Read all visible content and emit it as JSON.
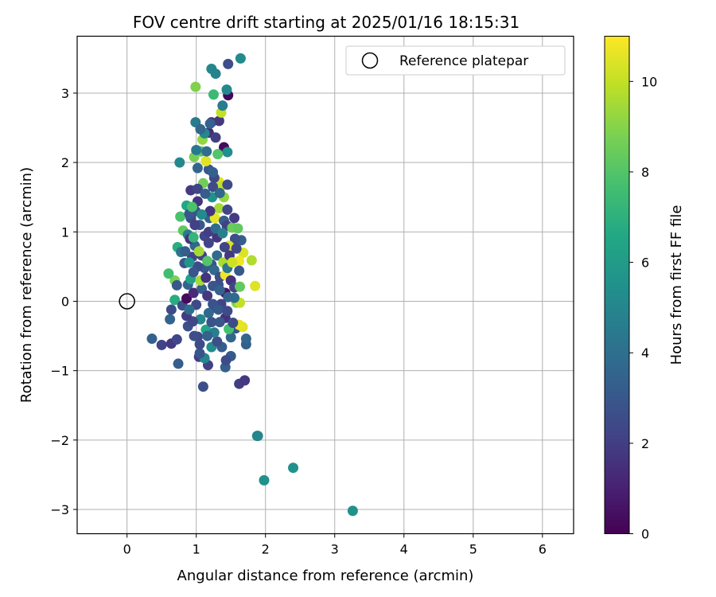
{
  "chart_data": {
    "type": "scatter",
    "title": "FOV centre drift starting at 2025/01/16 18:15:31",
    "xlabel": "Angular distance from reference (arcmin)",
    "ylabel": "Rotation from reference (arcmin)",
    "xlim": [
      -0.72,
      6.45
    ],
    "ylim": [
      -3.35,
      3.82
    ],
    "xticks": [
      0,
      1,
      2,
      3,
      4,
      5,
      6
    ],
    "yticks": [
      -3,
      -2,
      -1,
      0,
      1,
      2,
      3
    ],
    "grid": true,
    "legend": {
      "placement": "top-right",
      "entries": [
        "Reference platepar"
      ]
    },
    "reference_point": {
      "x": 0,
      "y": 0
    },
    "colorbar": {
      "label": "Hours from first FF file",
      "colormap": "viridis",
      "range": [
        0,
        11
      ],
      "ticks": [
        0,
        2,
        4,
        6,
        8,
        10
      ]
    },
    "series": [
      {
        "points": [
          [
            3.26,
            -3.02,
            5.5
          ],
          [
            2.4,
            -2.4,
            5.5
          ],
          [
            1.98,
            -2.58,
            5.5
          ],
          [
            1.89,
            -1.94,
            5.3
          ],
          [
            1.88,
            -1.94,
            5.0
          ],
          [
            1.1,
            -1.23,
            2.6
          ],
          [
            1.62,
            -1.19,
            2.0
          ],
          [
            1.7,
            -1.14,
            1.8
          ],
          [
            1.17,
            -0.92,
            2.1
          ],
          [
            1.42,
            -0.95,
            3.3
          ],
          [
            0.74,
            -0.9,
            3.2
          ],
          [
            1.04,
            -0.8,
            2.0
          ],
          [
            1.12,
            -0.82,
            5.0
          ],
          [
            1.5,
            -0.79,
            3.1
          ],
          [
            1.43,
            -0.85,
            2.5
          ],
          [
            0.5,
            -0.63,
            2.2
          ],
          [
            0.64,
            -0.61,
            1.8
          ],
          [
            0.36,
            -0.54,
            3.4
          ],
          [
            0.72,
            -0.55,
            2.3
          ],
          [
            1.22,
            -0.66,
            5.3
          ],
          [
            1.72,
            -0.62,
            3.3
          ],
          [
            1.72,
            -0.54,
            3.6
          ],
          [
            1.37,
            -0.66,
            3.2
          ],
          [
            1.05,
            -0.75,
            2.9
          ],
          [
            1.3,
            -0.58,
            2.6
          ],
          [
            0.62,
            -0.26,
            3.5
          ],
          [
            0.64,
            -0.12,
            2.5
          ],
          [
            0.88,
            -0.36,
            2.7
          ],
          [
            1.14,
            -0.41,
            6.5
          ],
          [
            1.5,
            -0.52,
            3.6
          ],
          [
            1.57,
            -0.39,
            2.9
          ],
          [
            1.67,
            -0.37,
            10.5
          ],
          [
            1.47,
            -0.4,
            7.7
          ],
          [
            1.62,
            -0.34,
            10.6
          ],
          [
            1.02,
            -0.51,
            2.4
          ],
          [
            0.69,
            0.02,
            6.8
          ],
          [
            0.69,
            0.3,
            8.8
          ],
          [
            0.6,
            0.4,
            7.6
          ],
          [
            0.72,
            0.23,
            3.0
          ],
          [
            0.88,
            0.24,
            3.5
          ],
          [
            0.92,
            0.32,
            6.3
          ],
          [
            1.32,
            0.24,
            2.7
          ],
          [
            1.42,
            0.12,
            0.6
          ],
          [
            1.58,
            -0.02,
            9.0
          ],
          [
            1.63,
            -0.02,
            10.0
          ],
          [
            1.85,
            0.22,
            10.5
          ],
          [
            1.8,
            0.59,
            9.7
          ],
          [
            1.68,
            0.7,
            10.4
          ],
          [
            1.62,
            0.58,
            10.8
          ],
          [
            1.65,
            0.88,
            3.2
          ],
          [
            1.56,
            0.9,
            2.6
          ],
          [
            1.47,
            0.8,
            10.4
          ],
          [
            1.41,
            0.78,
            2.2
          ],
          [
            1.3,
            0.92,
            1.7
          ],
          [
            1.22,
            0.53,
            2.8
          ],
          [
            1.12,
            0.48,
            3.1
          ],
          [
            1.02,
            0.5,
            2.5
          ],
          [
            0.94,
            0.64,
            2.2
          ],
          [
            0.83,
            0.55,
            2.9
          ],
          [
            0.73,
            0.78,
            6.9
          ],
          [
            0.78,
            0.71,
            4.3
          ],
          [
            0.81,
            1.02,
            8.3
          ],
          [
            0.77,
            1.22,
            7.8
          ],
          [
            0.86,
            1.38,
            6.5
          ],
          [
            0.92,
            1.6,
            1.9
          ],
          [
            0.99,
            1.3,
            2.8
          ],
          [
            1.05,
            1.1,
            3.0
          ],
          [
            1.12,
            0.94,
            2.3
          ],
          [
            1.19,
            1.2,
            3.4
          ],
          [
            1.27,
            1.2,
            10.6
          ],
          [
            1.33,
            1.34,
            9.5
          ],
          [
            1.4,
            1.16,
            3.2
          ],
          [
            1.44,
            1.09,
            2.1
          ],
          [
            1.52,
            1.06,
            8.5
          ],
          [
            1.4,
            1.5,
            9.2
          ],
          [
            1.33,
            1.72,
            10.5
          ],
          [
            1.26,
            1.78,
            2.4
          ],
          [
            1.18,
            1.9,
            3.0
          ],
          [
            1.14,
            2.02,
            10.5
          ],
          [
            1.07,
            2.16,
            8.0
          ],
          [
            0.97,
            2.08,
            8.7
          ],
          [
            0.76,
            2.0,
            5.1
          ],
          [
            1.0,
            2.18,
            4.4
          ],
          [
            1.09,
            2.33,
            9.2
          ],
          [
            1.18,
            2.43,
            1.4
          ],
          [
            1.22,
            2.58,
            1.6
          ],
          [
            1.28,
            2.36,
            2.0
          ],
          [
            1.33,
            2.6,
            1.8
          ],
          [
            1.36,
            2.72,
            10.0
          ],
          [
            1.4,
            2.22,
            0.3
          ],
          [
            1.45,
            2.15,
            5.3
          ],
          [
            1.46,
            2.97,
            0.2
          ],
          [
            1.44,
            3.05,
            5.1
          ],
          [
            1.38,
            2.82,
            4.6
          ],
          [
            1.25,
            2.98,
            7.4
          ],
          [
            0.99,
            3.09,
            8.9
          ],
          [
            0.99,
            2.58,
            4.5
          ],
          [
            1.22,
            3.35,
            5.0
          ],
          [
            1.28,
            3.28,
            4.9
          ],
          [
            1.46,
            3.42,
            2.6
          ],
          [
            1.64,
            3.5,
            5.2
          ],
          [
            1.12,
            2.42,
            5.1
          ],
          [
            1.23,
            1.5,
            5.5
          ],
          [
            1.36,
            1.66,
            10.0
          ],
          [
            1.45,
            1.32,
            2.3
          ],
          [
            1.55,
            1.2,
            1.9
          ],
          [
            1.6,
            1.05,
            8.3
          ],
          [
            1.1,
            1.7,
            8.6
          ],
          [
            1.02,
            1.44,
            1.7
          ],
          [
            0.92,
            1.2,
            2.5
          ],
          [
            0.88,
            0.96,
            4.5
          ],
          [
            0.98,
            0.8,
            3.6
          ],
          [
            1.08,
            0.66,
            2.2
          ],
          [
            1.16,
            0.58,
            8.0
          ],
          [
            1.26,
            0.45,
            3.7
          ],
          [
            1.34,
            0.35,
            2.6
          ],
          [
            1.42,
            0.38,
            10.8
          ],
          [
            1.5,
            0.3,
            1.6
          ],
          [
            1.55,
            0.2,
            2.2
          ],
          [
            1.46,
            0.06,
            3.5
          ],
          [
            1.36,
            -0.04,
            2.2
          ],
          [
            1.26,
            -0.09,
            1.5
          ],
          [
            1.18,
            -0.17,
            3.7
          ],
          [
            1.06,
            -0.26,
            5.0
          ],
          [
            0.95,
            -0.29,
            2.3
          ],
          [
            0.86,
            -0.21,
            1.9
          ],
          [
            0.8,
            -0.06,
            2.6
          ],
          [
            0.86,
            0.04,
            0.3
          ],
          [
            0.96,
            0.12,
            1.3
          ],
          [
            1.08,
            0.18,
            3.3
          ],
          [
            1.16,
            0.08,
            1.8
          ],
          [
            1.24,
            -0.04,
            2.8
          ],
          [
            1.32,
            -0.12,
            3.1
          ],
          [
            1.42,
            -0.24,
            1.5
          ],
          [
            1.53,
            -0.31,
            2.5
          ],
          [
            1.22,
            -0.3,
            2.8
          ],
          [
            1.0,
            -0.05,
            2.4
          ],
          [
            0.9,
            0.56,
            5.7
          ],
          [
            1.04,
            0.72,
            9.5
          ],
          [
            1.18,
            0.84,
            2.2
          ],
          [
            1.3,
            0.66,
            3.8
          ],
          [
            1.39,
            0.56,
            9.6
          ],
          [
            1.48,
            0.66,
            1.8
          ],
          [
            1.58,
            0.76,
            2.4
          ],
          [
            1.18,
            1.0,
            2.0
          ],
          [
            1.28,
            1.05,
            3.9
          ],
          [
            1.38,
            0.98,
            4.8
          ],
          [
            1.2,
            1.3,
            1.7
          ],
          [
            1.08,
            1.25,
            5.2
          ],
          [
            0.98,
            1.1,
            2.1
          ],
          [
            0.91,
            0.9,
            1.6
          ],
          [
            0.84,
            0.72,
            3.2
          ],
          [
            0.96,
            0.42,
            2.9
          ],
          [
            1.06,
            0.3,
            9.5
          ],
          [
            1.14,
            0.34,
            1.6
          ],
          [
            1.24,
            0.22,
            2.9
          ],
          [
            1.34,
            0.16,
            3.4
          ],
          [
            1.45,
            0.48,
            4.4
          ],
          [
            1.52,
            0.56,
            10.2
          ],
          [
            1.62,
            0.44,
            3.0
          ],
          [
            1.63,
            0.21,
            8.3
          ],
          [
            1.55,
            0.05,
            3.8
          ],
          [
            1.45,
            -0.14,
            2.5
          ],
          [
            1.34,
            -0.3,
            3.0
          ],
          [
            1.26,
            -0.45,
            4.6
          ],
          [
            1.16,
            -0.5,
            3.4
          ],
          [
            1.05,
            -0.62,
            2.5
          ],
          [
            0.97,
            -0.5,
            2.6
          ],
          [
            0.9,
            -0.12,
            3.9
          ],
          [
            0.96,
            0.92,
            7.2
          ],
          [
            1.02,
            1.62,
            2.2
          ],
          [
            1.13,
            1.55,
            3.2
          ],
          [
            1.24,
            1.65,
            2.5
          ],
          [
            1.34,
            1.56,
            3.7
          ],
          [
            1.45,
            1.68,
            2.5
          ],
          [
            1.24,
            1.86,
            3.3
          ],
          [
            1.15,
            2.16,
            3.9
          ],
          [
            1.31,
            2.12,
            8.0
          ],
          [
            1.2,
            2.56,
            3.4
          ],
          [
            1.06,
            2.48,
            3.6
          ],
          [
            1.02,
            1.92,
            3.6
          ],
          [
            0.9,
            1.26,
            3.0
          ],
          [
            0.94,
            1.36,
            7.8
          ]
        ]
      }
    ]
  }
}
